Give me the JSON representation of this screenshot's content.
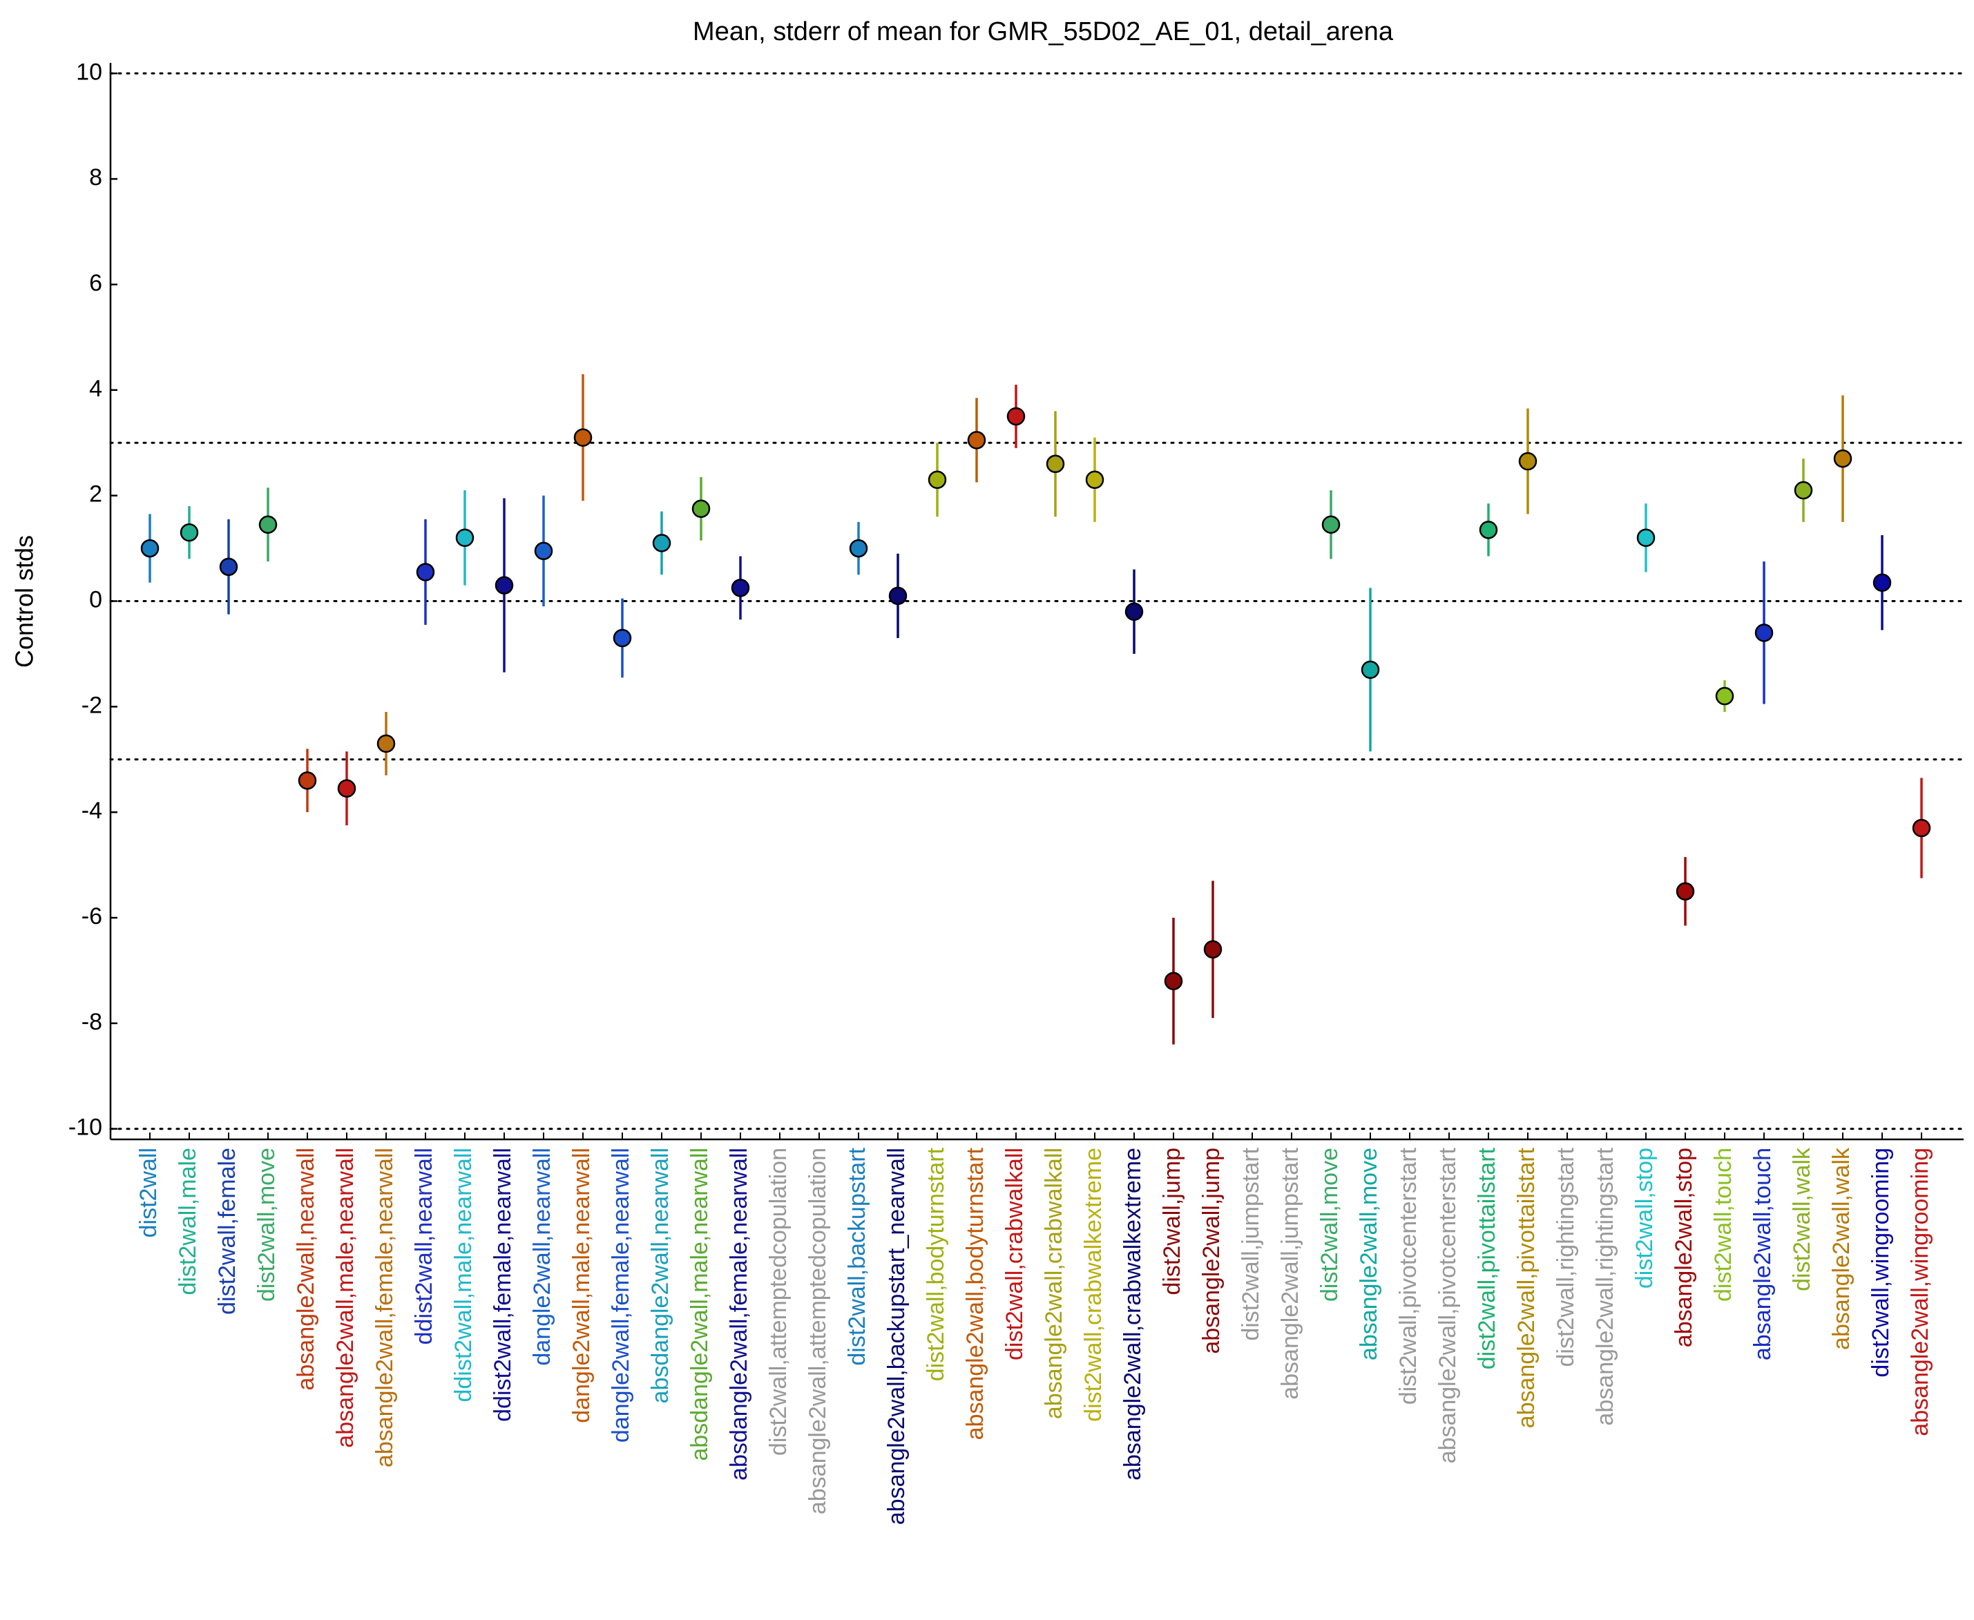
{
  "chart_data": {
    "type": "errorbar",
    "title": "Mean, stderr of mean for GMR_55D02_AE_01, detail_arena",
    "y_label": "Control stds",
    "ylim": [
      -10.2,
      10.2
    ],
    "yticks": [
      -10,
      -8,
      -6,
      -4,
      -2,
      0,
      2,
      4,
      6,
      8,
      10
    ],
    "reference_lines": [
      -10,
      -3,
      0,
      3,
      10
    ],
    "categories": [
      "dist2wall",
      "dist2wall,male",
      "dist2wall,female",
      "dist2wall,move",
      "absangle2wall,nearwall",
      "absangle2wall,male,nearwall",
      "absangle2wall,female,nearwall",
      "ddist2wall,nearwall",
      "ddist2wall,male,nearwall",
      "ddist2wall,female,nearwall",
      "dangle2wall,nearwall",
      "dangle2wall,male,nearwall",
      "dangle2wall,female,nearwall",
      "absdangle2wall,nearwall",
      "absdangle2wall,male,nearwall",
      "absdangle2wall,female,nearwall",
      "dist2wall,attemptedcopulation",
      "absangle2wall,attemptedcopulation",
      "dist2wall,backupstart",
      "absangle2wall,backupstart_nearwall",
      "dist2wall,bodyturnstart",
      "absangle2wall,bodyturnstart",
      "dist2wall,crabwalkall",
      "absangle2wall,crabwalkall",
      "dist2wall,crabwalkextreme",
      "absangle2wall,crabwalkextreme",
      "dist2wall,jump",
      "absangle2wall,jump",
      "dist2wall,jumpstart",
      "absangle2wall,jumpstart",
      "dist2wall,move",
      "absangle2wall,move",
      "dist2wall,pivotcenterstart",
      "absangle2wall,pivotcenterstart",
      "dist2wall,pivottailstart",
      "absangle2wall,pivottailstart",
      "dist2wall,rightingstart",
      "absangle2wall,rightingstart",
      "dist2wall,stop",
      "absangle2wall,stop",
      "dist2wall,touch",
      "absangle2wall,touch",
      "dist2wall,walk",
      "absangle2wall,walk",
      "dist2wall,wingrooming",
      "absangle2wall,wingrooming"
    ],
    "values": [
      1.0,
      1.3,
      0.65,
      1.45,
      -3.4,
      -3.55,
      -2.7,
      0.55,
      1.2,
      0.3,
      0.95,
      3.1,
      -0.7,
      1.1,
      1.75,
      0.25,
      null,
      null,
      1.0,
      0.1,
      2.3,
      3.05,
      3.5,
      2.6,
      2.3,
      -0.2,
      -7.2,
      -6.6,
      null,
      null,
      1.45,
      -1.3,
      null,
      null,
      1.35,
      2.65,
      null,
      null,
      1.2,
      -5.5,
      -1.8,
      -0.6,
      2.1,
      2.7,
      0.35,
      -4.3
    ],
    "errors": [
      0.65,
      0.5,
      0.9,
      0.7,
      0.6,
      0.7,
      0.6,
      1.0,
      0.9,
      1.65,
      1.05,
      1.2,
      0.75,
      0.6,
      0.6,
      0.6,
      null,
      null,
      0.5,
      0.8,
      0.7,
      0.8,
      0.6,
      1.0,
      0.8,
      0.8,
      1.2,
      1.3,
      null,
      null,
      0.65,
      1.55,
      null,
      null,
      0.5,
      1.0,
      null,
      null,
      0.65,
      0.65,
      0.3,
      1.35,
      0.6,
      1.2,
      0.9,
      0.95
    ],
    "colors": [
      "#1a7fbf",
      "#22b08f",
      "#1a3fb0",
      "#3aaa66",
      "#c03a10",
      "#c01818",
      "#b87010",
      "#1f30c0",
      "#20b8c8",
      "#10108f",
      "#1a60c8",
      "#c05a08",
      "#1a4fc8",
      "#18a0b8",
      "#5aaa30",
      "#10108f",
      "#999999",
      "#999999",
      "#1a7fbf",
      "#0a0a70",
      "#a0b010",
      "#c05a08",
      "#c01818",
      "#a8a010",
      "#b8b010",
      "#0a0a70",
      "#8a0a0a",
      "#8a0a0a",
      "#999999",
      "#999999",
      "#3aaa66",
      "#10a8a0",
      "#999999",
      "#999999",
      "#20b070",
      "#b08a08",
      "#999999",
      "#999999",
      "#20c0c8",
      "#a00a0a",
      "#8ac020",
      "#1a30c0",
      "#8ab020",
      "#b87a08",
      "#0a0aa0",
      "#c01818"
    ]
  }
}
